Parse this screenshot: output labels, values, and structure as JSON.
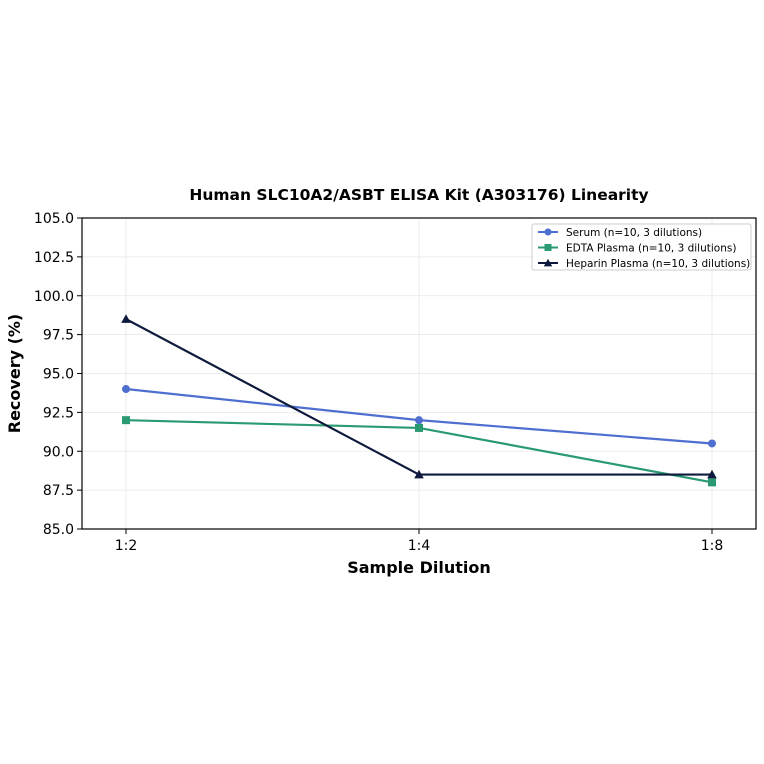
{
  "chart_data": {
    "type": "line",
    "title": "Human SLC10A2/ASBT ELISA Kit (A303176) Linearity",
    "xlabel": "Sample Dilution",
    "ylabel": "Recovery (%)",
    "categories": [
      "1:2",
      "1:4",
      "1:8"
    ],
    "ylim": [
      85.0,
      105.0
    ],
    "yticks": [
      "85.0",
      "87.5",
      "90.0",
      "92.5",
      "95.0",
      "97.5",
      "100.0",
      "102.5",
      "105.0"
    ],
    "grid": true,
    "legend_position": "top-right",
    "series": [
      {
        "name": "Serum (n=10, 3 dilutions)",
        "values": [
          94.0,
          92.0,
          90.5
        ],
        "color": "#4e6fcf",
        "marker": "circle"
      },
      {
        "name": "EDTA Plasma (n=10, 3 dilutions)",
        "values": [
          92.0,
          91.5,
          88.0
        ],
        "color": "#2a9a72",
        "marker": "square"
      },
      {
        "name": "Heparin Plasma (n=10, 3 dilutions)",
        "values": [
          98.5,
          88.5,
          88.5
        ],
        "color": "#0d1a3d",
        "marker": "triangle"
      }
    ]
  }
}
